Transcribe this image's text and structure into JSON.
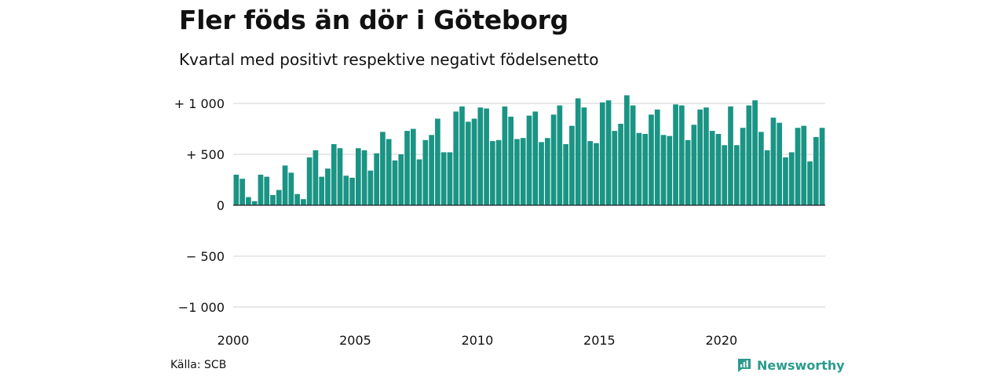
{
  "chart_data": {
    "type": "bar",
    "title": "Fler föds än dör i Göteborg",
    "subtitle": "Kvartal med positivt respektive negativt födelsenetto",
    "xlabel": "",
    "ylabel": "",
    "ylim": [
      -1050,
      1050
    ],
    "grid": true,
    "legend": "none",
    "bar_color": "#1a9484",
    "x_ticks": [
      "2000",
      "2005",
      "2010",
      "2015",
      "2020"
    ],
    "y_ticks": [
      {
        "value": 1000,
        "label": "+ 1 000"
      },
      {
        "value": 500,
        "label": "+   500"
      },
      {
        "value": 0,
        "label": "0"
      },
      {
        "value": -500,
        "label": "− 500"
      },
      {
        "value": -1000,
        "label": "−1 000"
      }
    ],
    "series": [
      {
        "start_year": 2000,
        "periods_per_year": 4,
        "values": [
          300,
          260,
          80,
          40,
          300,
          280,
          100,
          150,
          390,
          320,
          110,
          60,
          470,
          540,
          280,
          360,
          600,
          560,
          290,
          270,
          560,
          540,
          340,
          510,
          720,
          650,
          440,
          500,
          730,
          750,
          450,
          640,
          690,
          850,
          520,
          520,
          920,
          970,
          820,
          850,
          960,
          950,
          630,
          640,
          970,
          870,
          650,
          660,
          880,
          920,
          620,
          660,
          890,
          980,
          600,
          780,
          1050,
          960,
          630,
          610,
          1010,
          1030,
          730,
          800,
          1080,
          980,
          710,
          700,
          890,
          940,
          690,
          680,
          990,
          980,
          640,
          790,
          940,
          960,
          730,
          700,
          590,
          970,
          590,
          760,
          980,
          1030,
          720,
          540,
          860,
          810,
          470,
          520,
          760,
          780,
          430,
          670,
          760
        ]
      }
    ]
  },
  "footer": {
    "source": "Källa: SCB",
    "brand": "Newsworthy",
    "brand_color": "#2a9c8c",
    "logo_icon": "newsworthy-logo-icon"
  }
}
